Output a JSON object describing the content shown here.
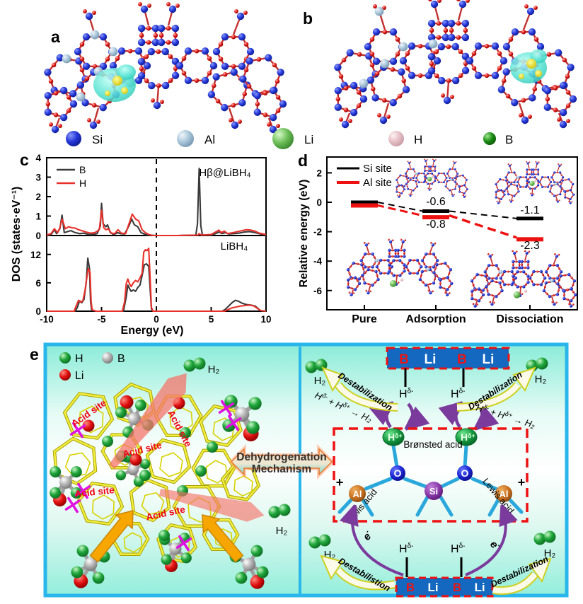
{
  "panel_labels": {
    "a": "a",
    "b": "b",
    "c": "c",
    "d": "d",
    "e": "e"
  },
  "atom_legend": {
    "items": [
      {
        "label": "Si",
        "color": "#2336d8"
      },
      {
        "label": "Al",
        "color": "#a8c6da"
      },
      {
        "label": "Li",
        "color": "#6cbe58"
      },
      {
        "label": "H",
        "color": "#e4bec4"
      },
      {
        "label": "B",
        "color": "#1c8c14"
      }
    ]
  },
  "chart_data": [
    {
      "type": "line",
      "panel": "c",
      "xlabel": "Energy (eV)",
      "ylabel": "DOS (states·eV⁻¹)",
      "xlim": [
        -10,
        10
      ],
      "xticks": [
        -10,
        -5,
        0,
        5,
        10
      ],
      "fermi_line_x": 0,
      "grid": false,
      "legend": {
        "position": "top-left",
        "entries": [
          {
            "name": "B",
            "color": "#3a3a3a"
          },
          {
            "name": "H",
            "color": "#e8302a"
          }
        ]
      },
      "subplots": [
        {
          "annotation": "Hβ@LiBH₄",
          "ylim": [
            0,
            4
          ],
          "yticks": [
            0,
            1,
            2,
            3,
            4
          ],
          "series": [
            {
              "name": "B",
              "color": "#3a3a3a",
              "points": [
                [
                  -10,
                  0
                ],
                [
                  -9.6,
                  0.05
                ],
                [
                  -9.3,
                  0.3
                ],
                [
                  -9.1,
                  0.1
                ],
                [
                  -8.8,
                  0.35
                ],
                [
                  -8.6,
                  1.05
                ],
                [
                  -8.4,
                  0.15
                ],
                [
                  -8.1,
                  0.2
                ],
                [
                  -7.8,
                  0.25
                ],
                [
                  -7.4,
                  0.15
                ],
                [
                  -7.0,
                  0.1
                ],
                [
                  -6.6,
                  0.12
                ],
                [
                  -6.2,
                  0.06
                ],
                [
                  -5.8,
                  0.05
                ],
                [
                  -5.4,
                  0.1
                ],
                [
                  -5.1,
                  0.5
                ],
                [
                  -5.0,
                  1.65
                ],
                [
                  -4.85,
                  0.6
                ],
                [
                  -4.6,
                  0.45
                ],
                [
                  -4.45,
                  0.55
                ],
                [
                  -4.2,
                  0.15
                ],
                [
                  -3.9,
                  0.05
                ],
                [
                  -3.5,
                  0.15
                ],
                [
                  -3.3,
                  0.1
                ],
                [
                  -2.9,
                  0.08
                ],
                [
                  -2.5,
                  0.5
                ],
                [
                  -2.25,
                  0.85
                ],
                [
                  -2.0,
                  0.55
                ],
                [
                  -1.7,
                  0.45
                ],
                [
                  -1.4,
                  0.15
                ],
                [
                  -1.0,
                  0.05
                ],
                [
                  -0.6,
                  0.02
                ],
                [
                  0,
                  0
                ],
                [
                  2,
                  0
                ],
                [
                  3.6,
                  0.02
                ],
                [
                  3.75,
                  0.6
                ],
                [
                  3.9,
                  3.45
                ],
                [
                  4.05,
                  0.5
                ],
                [
                  4.2,
                  0.03
                ],
                [
                  5,
                  0.02
                ],
                [
                  5.4,
                  0.1
                ],
                [
                  5.7,
                  0.18
                ],
                [
                  6.0,
                  0.1
                ],
                [
                  6.3,
                  0.15
                ],
                [
                  6.6,
                  0.08
                ],
                [
                  7.0,
                  0.1
                ],
                [
                  7.5,
                  0.12
                ],
                [
                  8.0,
                  0.18
                ],
                [
                  8.5,
                  0.2
                ],
                [
                  9.0,
                  0.15
                ],
                [
                  9.5,
                  0.08
                ],
                [
                  10,
                  0.03
                ]
              ]
            },
            {
              "name": "H",
              "color": "#e8302a",
              "points": [
                [
                  -10,
                  0.02
                ],
                [
                  -9.6,
                  0.1
                ],
                [
                  -9.3,
                  0.35
                ],
                [
                  -9.0,
                  0.15
                ],
                [
                  -8.8,
                  0.4
                ],
                [
                  -8.6,
                  0.85
                ],
                [
                  -8.3,
                  0.35
                ],
                [
                  -8.0,
                  0.45
                ],
                [
                  -7.7,
                  0.4
                ],
                [
                  -7.4,
                  0.38
                ],
                [
                  -7.1,
                  0.3
                ],
                [
                  -6.8,
                  0.25
                ],
                [
                  -6.4,
                  0.18
                ],
                [
                  -6.0,
                  0.12
                ],
                [
                  -5.6,
                  0.15
                ],
                [
                  -5.2,
                  0.3
                ],
                [
                  -5.0,
                  1.3
                ],
                [
                  -4.8,
                  0.4
                ],
                [
                  -4.6,
                  0.3
                ],
                [
                  -4.4,
                  0.35
                ],
                [
                  -4.1,
                  0.12
                ],
                [
                  -3.8,
                  0.1
                ],
                [
                  -3.5,
                  0.3
                ],
                [
                  -3.2,
                  0.12
                ],
                [
                  -2.8,
                  0.1
                ],
                [
                  -2.5,
                  0.6
                ],
                [
                  -2.2,
                  1.1
                ],
                [
                  -1.9,
                  0.85
                ],
                [
                  -1.6,
                  0.75
                ],
                [
                  -1.3,
                  0.3
                ],
                [
                  -1.0,
                  0.15
                ],
                [
                  -0.7,
                  0.05
                ],
                [
                  -0.3,
                  0
                ],
                [
                  2,
                  0
                ],
                [
                  3.8,
                  0.02
                ],
                [
                  3.9,
                  0.1
                ],
                [
                  4.1,
                  0.02
                ],
                [
                  5,
                  0.05
                ],
                [
                  5.4,
                  0.18
                ],
                [
                  5.7,
                  0.28
                ],
                [
                  5.9,
                  0.15
                ],
                [
                  6.2,
                  0.22
                ],
                [
                  6.5,
                  0.1
                ],
                [
                  7.0,
                  0.15
                ],
                [
                  7.4,
                  0.2
                ],
                [
                  7.8,
                  0.25
                ],
                [
                  8.2,
                  0.3
                ],
                [
                  8.6,
                  0.28
                ],
                [
                  9.0,
                  0.22
                ],
                [
                  9.4,
                  0.12
                ],
                [
                  10,
                  0.05
                ]
              ]
            }
          ]
        },
        {
          "annotation": "LiBH₄",
          "ylim": [
            0,
            16
          ],
          "yticks": [
            0,
            6,
            12
          ],
          "series": [
            {
              "name": "B",
              "color": "#3a3a3a",
              "points": [
                [
                  -10,
                  0
                ],
                [
                  -7.4,
                  0
                ],
                [
                  -7.2,
                  0.8
                ],
                [
                  -7.0,
                  2.2
                ],
                [
                  -6.8,
                  1.8
                ],
                [
                  -6.6,
                  2.5
                ],
                [
                  -6.4,
                  6
                ],
                [
                  -6.25,
                  11.2
                ],
                [
                  -6.1,
                  9
                ],
                [
                  -6.0,
                  2
                ],
                [
                  -5.9,
                  0.2
                ],
                [
                  -5.5,
                  0
                ],
                [
                  -3.0,
                  0
                ],
                [
                  -2.75,
                  3
                ],
                [
                  -2.6,
                  5.5
                ],
                [
                  -2.45,
                  4.8
                ],
                [
                  -2.3,
                  4.2
                ],
                [
                  -2.1,
                  4.5
                ],
                [
                  -1.9,
                  4.2
                ],
                [
                  -1.7,
                  5
                ],
                [
                  -1.5,
                  5.5
                ],
                [
                  -1.3,
                  7.5
                ],
                [
                  -1.1,
                  9.8
                ],
                [
                  -0.9,
                  10
                ],
                [
                  -0.7,
                  9.5
                ],
                [
                  -0.55,
                  4
                ],
                [
                  -0.45,
                  0.5
                ],
                [
                  -0.3,
                  0
                ],
                [
                  3,
                  0
                ],
                [
                  6.0,
                  0
                ],
                [
                  6.3,
                  0.4
                ],
                [
                  6.6,
                  1.1
                ],
                [
                  6.9,
                  1.8
                ],
                [
                  7.2,
                  2.3
                ],
                [
                  7.5,
                  2.1
                ],
                [
                  7.8,
                  1.7
                ],
                [
                  8.2,
                  1.4
                ],
                [
                  8.6,
                  1.3
                ],
                [
                  9.0,
                  1.1
                ],
                [
                  9.3,
                  0.5
                ],
                [
                  9.5,
                  0.1
                ],
                [
                  10,
                  0
                ]
              ]
            },
            {
              "name": "H",
              "color": "#e8302a",
              "points": [
                [
                  -10,
                  0
                ],
                [
                  -7.5,
                  0
                ],
                [
                  -7.3,
                  1.2
                ],
                [
                  -7.1,
                  2.3
                ],
                [
                  -6.9,
                  1.9
                ],
                [
                  -6.7,
                  2.2
                ],
                [
                  -6.5,
                  4.5
                ],
                [
                  -6.35,
                  7
                ],
                [
                  -6.2,
                  9
                ],
                [
                  -6.05,
                  8.3
                ],
                [
                  -5.95,
                  2
                ],
                [
                  -5.85,
                  0.3
                ],
                [
                  -5.5,
                  0
                ],
                [
                  -3.1,
                  0
                ],
                [
                  -2.9,
                  2
                ],
                [
                  -2.75,
                  5.8
                ],
                [
                  -2.6,
                  6.8
                ],
                [
                  -2.45,
                  5.8
                ],
                [
                  -2.3,
                  5.2
                ],
                [
                  -2.1,
                  6
                ],
                [
                  -1.9,
                  6.5
                ],
                [
                  -1.7,
                  6.2
                ],
                [
                  -1.5,
                  7
                ],
                [
                  -1.3,
                  8
                ],
                [
                  -1.15,
                  12.5
                ],
                [
                  -1.0,
                  13
                ],
                [
                  -0.85,
                  12.8
                ],
                [
                  -0.7,
                  13.3
                ],
                [
                  -0.55,
                  6
                ],
                [
                  -0.45,
                  0.8
                ],
                [
                  -0.3,
                  0
                ],
                [
                  3,
                  0
                ],
                [
                  6.2,
                  0
                ],
                [
                  6.5,
                  0.3
                ],
                [
                  6.9,
                  0.7
                ],
                [
                  7.3,
                  0.9
                ],
                [
                  7.7,
                  1.1
                ],
                [
                  8.1,
                  1.2
                ],
                [
                  8.5,
                  1.3
                ],
                [
                  8.9,
                  1.1
                ],
                [
                  9.2,
                  0.6
                ],
                [
                  9.5,
                  0.15
                ],
                [
                  10,
                  0
                ]
              ]
            }
          ]
        }
      ]
    },
    {
      "type": "energy-level",
      "panel": "d",
      "ylabel": "Relative energy (eV)",
      "ylim": [
        -7,
        3
      ],
      "yticks": [
        2,
        0,
        -2,
        -4,
        -6
      ],
      "categories": [
        "Pure",
        "Adsorption",
        "Dissociation"
      ],
      "legend_position": "top-left",
      "series": [
        {
          "name": "Si site",
          "color": "#000000",
          "values": [
            0,
            -0.6,
            -1.1
          ],
          "value_labels": [
            "",
            "-0.6",
            "-1.1"
          ]
        },
        {
          "name": "Al site",
          "color": "#ee1111",
          "values": [
            0,
            -0.8,
            -2.3
          ],
          "value_labels": [
            "",
            "-0.8",
            "-2.3"
          ]
        }
      ]
    }
  ],
  "panel_e": {
    "legend": {
      "h": "H",
      "b": "B",
      "li": "Li"
    },
    "h2": "H₂",
    "acid_site": "Acid site",
    "mechanism_line1": "Dehydrogenation",
    "mechanism_line2": "Mechanism",
    "bar": {
      "b": "B",
      "li": "Li"
    },
    "h_delta_minus": {
      "base": "H",
      "sup": "δ-"
    },
    "h_delta_plus": {
      "base": "H",
      "sup": "δ+"
    },
    "bronsted": "Brønsted acid",
    "lewis": "Lewis acid",
    "plus": "+",
    "electron": {
      "base": "e",
      "sup": "-"
    },
    "formula": {
      "h1": "H",
      "s1": "δ-",
      "mid": " + H",
      "s2": "δ+",
      "end": " → H₂"
    },
    "destab_top_left": "Destabilization",
    "destab_top_right": "Destabilization",
    "destab_bottom_left": "Destabilistion",
    "destab_bottom_right": "Destabilization",
    "atom_o": "O",
    "atom_si": "Si",
    "atom_al": "Al"
  },
  "colors": {
    "box_border": "#29b6ea",
    "bar_blue": "#1468bf",
    "dashed_red": "#ee1111",
    "acid_text": "#f00312",
    "purple_arrow": "#7a3b9d",
    "bond_cyan": "#2ba8db",
    "framework_yellow": "#f2ee3e",
    "orange_arrow": "#f7a600",
    "beam_red": "#f47a70",
    "x_mark": "#e012e0",
    "isosurface_cyan": "#5ce4d4",
    "isosurface_yellow": "#e8d820"
  }
}
